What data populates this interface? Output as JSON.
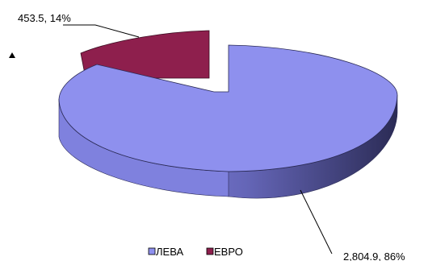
{
  "chart_data": {
    "type": "pie",
    "style": "3d-exploded",
    "slices": [
      {
        "category": "ЛЕВА",
        "value": 2804.9,
        "percent": 86,
        "label": "2,804.9, 86%",
        "color": "#8e90ee"
      },
      {
        "category": "ЕВРО",
        "value": 453.5,
        "percent": 14,
        "label": "453.5, 14%",
        "color": "#8e1f4d"
      }
    ],
    "legend": {
      "position": "bottom",
      "entries": [
        {
          "label": "ЛЕВА",
          "color": "#8e90ee"
        },
        {
          "label": "ЕВРО",
          "color": "#8e1f4d"
        }
      ]
    },
    "title": "",
    "xlabel": "",
    "ylabel": ""
  }
}
